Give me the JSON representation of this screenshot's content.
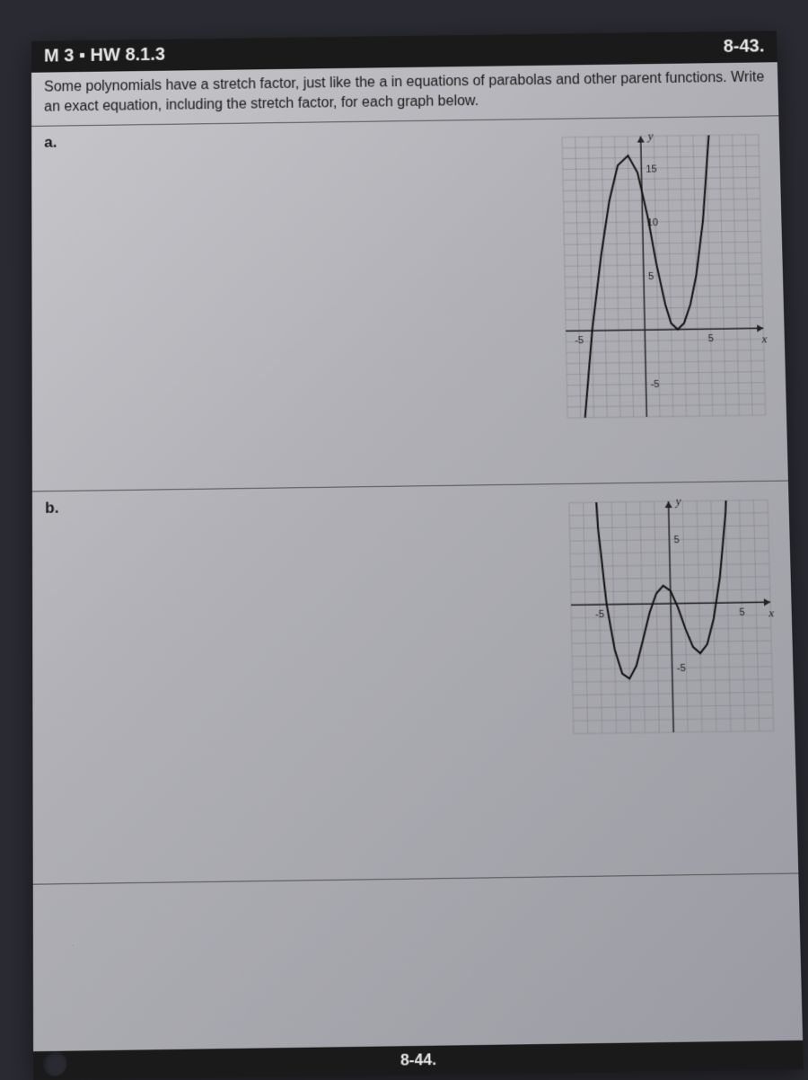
{
  "header": {
    "left": "M 3 ▪ HW 8.1.3",
    "right": "8-43."
  },
  "problem_text": "Some polynomials have a stretch factor, just like the a in equations of parabolas and other parent functions. Write an exact equation, including the stretch factor, for each graph below.",
  "parts": {
    "a": {
      "label": "a.",
      "graph": {
        "type": "line",
        "x_axis_label": "x",
        "y_axis_label": "y",
        "xlim": [
          -6,
          9
        ],
        "ylim": [
          -8,
          18
        ],
        "xticks": [
          {
            "v": -5,
            "l": "-5"
          },
          {
            "v": 5,
            "l": "5"
          }
        ],
        "yticks": [
          {
            "v": -5,
            "l": "-5"
          },
          {
            "v": 5,
            "l": "5"
          },
          {
            "v": 10,
            "l": "10"
          },
          {
            "v": 15,
            "l": "15"
          }
        ],
        "grid_color": "#777",
        "axis_color": "#222",
        "curve_color": "#111",
        "points": [
          [
            -5.8,
            -30
          ],
          [
            -5,
            -12
          ],
          [
            -4,
            0
          ],
          [
            -3.2,
            7
          ],
          [
            -2.5,
            12
          ],
          [
            -1.8,
            15.3
          ],
          [
            -1,
            16.2
          ],
          [
            -0.3,
            14.6
          ],
          [
            0.4,
            10.5
          ],
          [
            1,
            6
          ],
          [
            1.6,
            2.3
          ],
          [
            2,
            0.6
          ],
          [
            2.5,
            0
          ],
          [
            3,
            0.6
          ],
          [
            3.5,
            2.3
          ],
          [
            4,
            5
          ],
          [
            4.6,
            10
          ],
          [
            5.2,
            18
          ],
          [
            5.6,
            28
          ]
        ]
      }
    },
    "b": {
      "label": "b.",
      "graph": {
        "type": "line",
        "x_axis_label": "x",
        "y_axis_label": "y",
        "xlim": [
          -7,
          7
        ],
        "ylim": [
          -10,
          8
        ],
        "xticks": [
          {
            "v": -5,
            "l": "-5"
          },
          {
            "v": 5,
            "l": "5"
          }
        ],
        "yticks": [
          {
            "v": -5,
            "l": "-5"
          },
          {
            "v": 5,
            "l": "5"
          }
        ],
        "grid_color": "#777",
        "axis_color": "#222",
        "curve_color": "#111",
        "points": [
          [
            -5.6,
            20
          ],
          [
            -5,
            6
          ],
          [
            -4.5,
            0
          ],
          [
            -4,
            -3.5
          ],
          [
            -3.5,
            -5.4
          ],
          [
            -3,
            -5.8
          ],
          [
            -2.5,
            -4.8
          ],
          [
            -2,
            -2.8
          ],
          [
            -1.5,
            -0.7
          ],
          [
            -1,
            0.8
          ],
          [
            -0.5,
            1.4
          ],
          [
            0,
            1
          ],
          [
            0.5,
            -0.3
          ],
          [
            1,
            -2
          ],
          [
            1.5,
            -3.4
          ],
          [
            2,
            -3.9
          ],
          [
            2.5,
            -3.2
          ],
          [
            3,
            -1.2
          ],
          [
            3.5,
            2
          ],
          [
            4,
            7
          ],
          [
            4.4,
            14
          ]
        ]
      }
    }
  },
  "footer": "8-44."
}
